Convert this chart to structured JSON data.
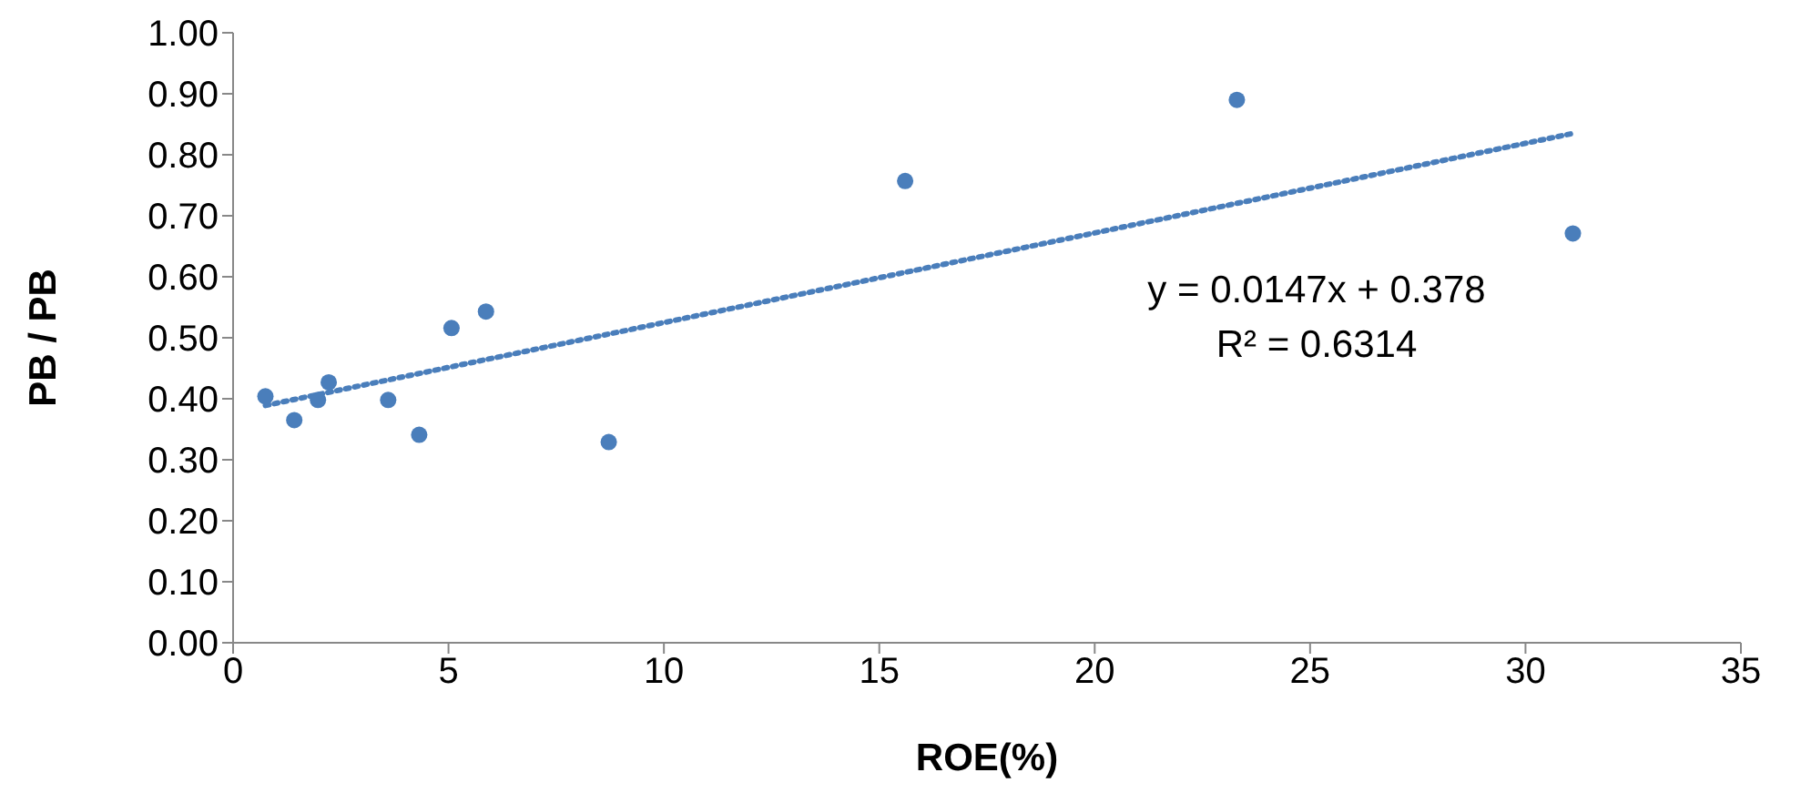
{
  "chart_data": {
    "type": "scatter",
    "xlabel": "ROE(%)",
    "ylabel": "PB / PB",
    "xlim": [
      0,
      35
    ],
    "xticks": [
      0,
      5,
      10,
      15,
      20,
      25,
      30,
      35
    ],
    "ylim": [
      0,
      1
    ],
    "yticks": [
      {
        "value": 0,
        "label": "0.00"
      },
      {
        "value": 0.1,
        "label": "0.10"
      },
      {
        "value": 0.2,
        "label": "0.20"
      },
      {
        "value": 0.3,
        "label": "0.30"
      },
      {
        "value": 0.4,
        "label": "0.40"
      },
      {
        "value": 0.5,
        "label": "0.50"
      },
      {
        "value": 0.6,
        "label": "0.60"
      },
      {
        "value": 0.7,
        "label": "0.70"
      },
      {
        "value": 0.8,
        "label": "0.80"
      },
      {
        "value": 0.9,
        "label": "0.90"
      },
      {
        "value": 1,
        "label": "1.00"
      }
    ],
    "marker": "circle",
    "series": [
      {
        "color": "#4a7ebb",
        "x": [
          0.75,
          1.42,
          1.97,
          2.22,
          3.6,
          4.32,
          5.07,
          5.87,
          8.72,
          15.6,
          23.3,
          31.1
        ],
        "values": [
          0.404,
          0.365,
          0.398,
          0.427,
          0.398,
          0.341,
          0.516,
          0.543,
          0.329,
          0.757,
          0.89,
          0.671
        ]
      },
      {
        "type": "line",
        "color": "#4a7ebb",
        "marker": "none",
        "line_style": "dotted",
        "x": [
          0.75,
          31.1
        ],
        "values": [
          0.389,
          0.835
        ]
      }
    ],
    "annotations": [
      "y = 0.0147x + 0.378",
      "R² = 0.6314"
    ]
  }
}
